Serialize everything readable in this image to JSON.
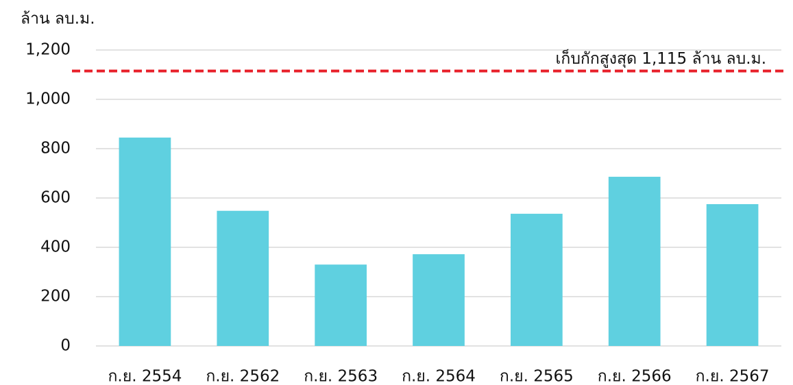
{
  "chart_data": {
    "type": "bar",
    "y_axis_label": "ล้าน ลบ.ม.",
    "categories": [
      "ก.ย. 2554",
      "ก.ย. 2562",
      "ก.ย. 2563",
      "ก.ย. 2564",
      "ก.ย. 2565",
      "ก.ย. 2566",
      "ก.ย. 2567"
    ],
    "values": [
      845,
      548,
      330,
      372,
      536,
      686,
      575
    ],
    "color": "#5fd0e0",
    "ylim": [
      0,
      1200
    ],
    "yticks": [
      0,
      200,
      400,
      600,
      800,
      {
        "value": 1000,
        "label": "1,000"
      },
      {
        "value": 1200,
        "label": "1,200"
      }
    ],
    "grid": true,
    "reference_line": {
      "value": 1115,
      "label": "เก็บกักสูงสุด 1,115 ล้าน ลบ.ม.",
      "color": "#e8202a"
    }
  }
}
